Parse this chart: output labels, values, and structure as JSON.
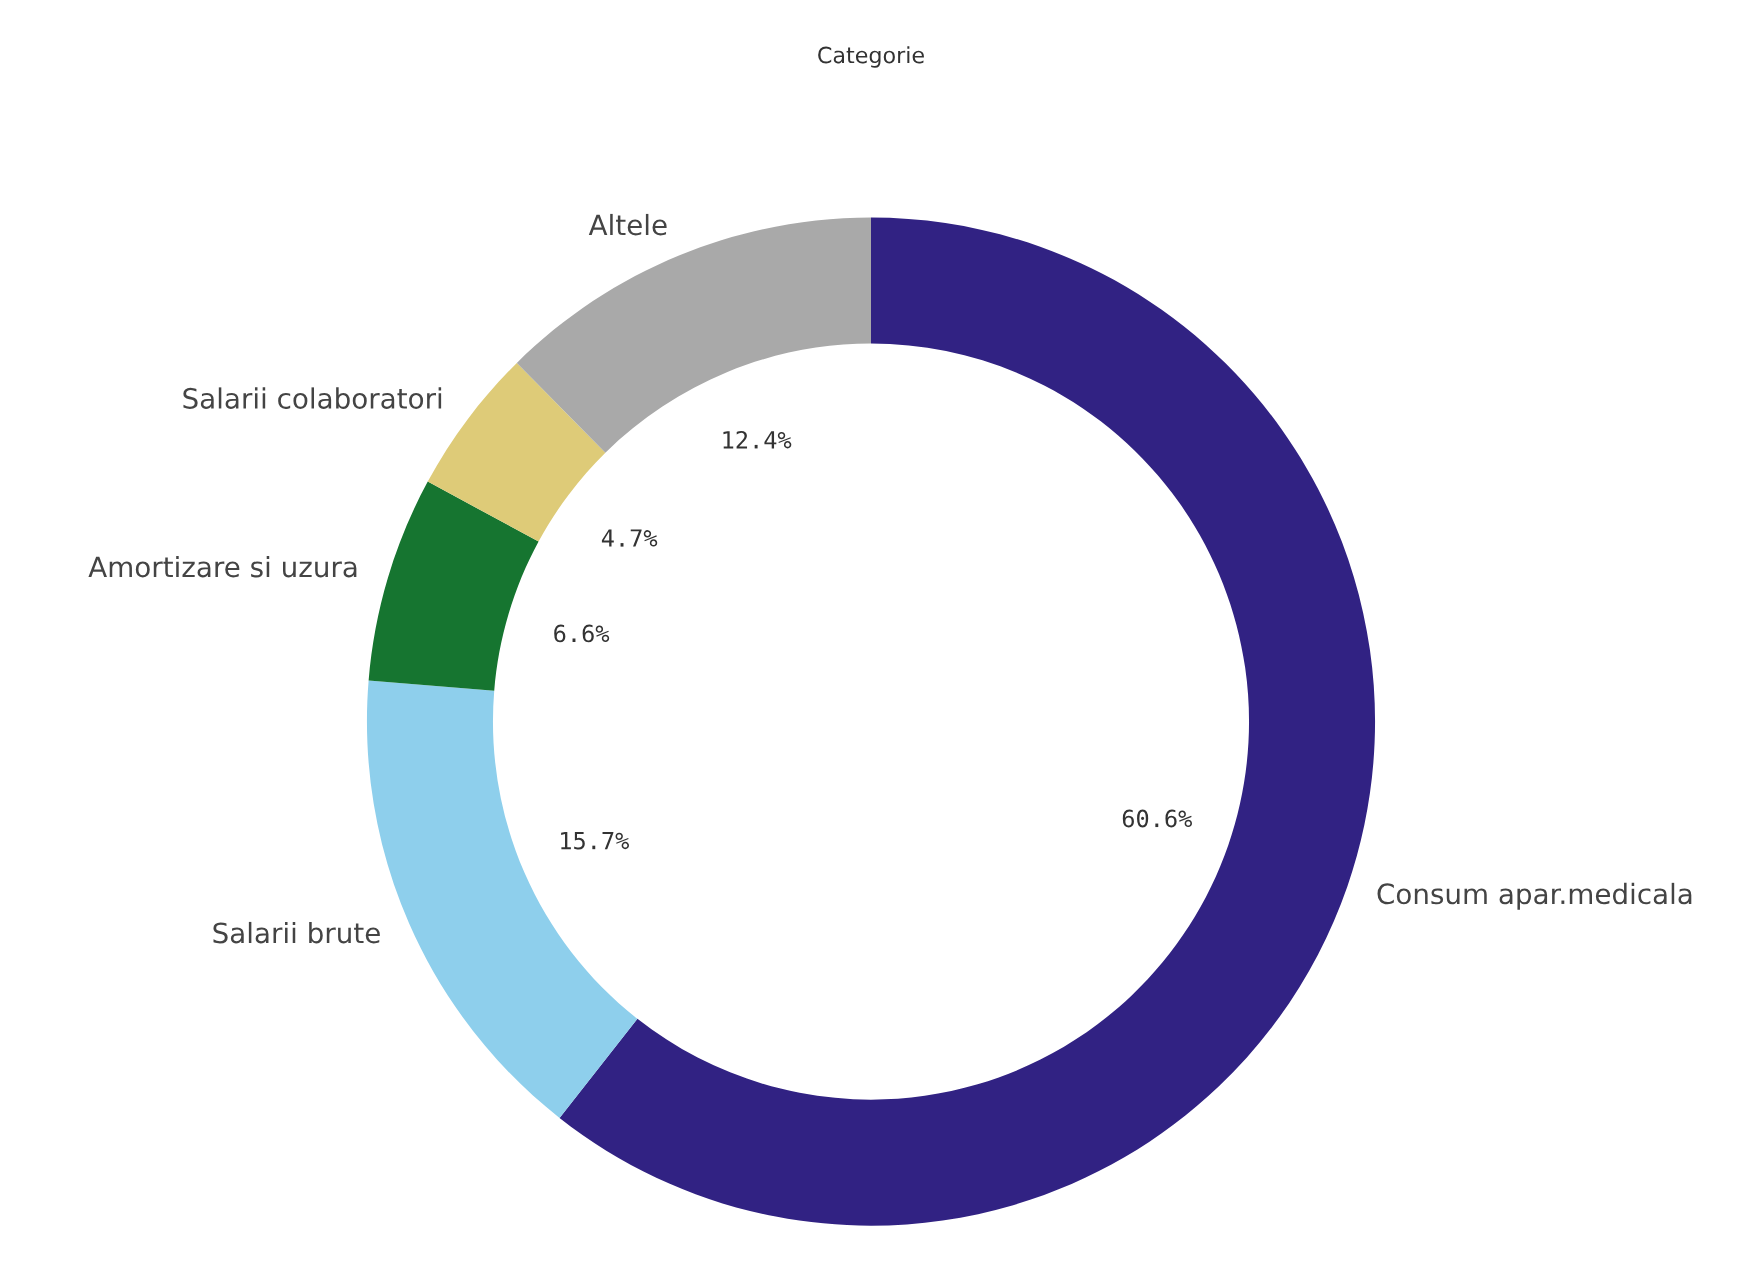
{
  "chart_data": {
    "type": "donut",
    "title": "Categorie",
    "categories": [
      "Consum apar.medicala",
      "Salarii brute",
      "Amortizare si uzura",
      "Salarii colaboratori",
      "Altele"
    ],
    "values": [
      60.6,
      15.7,
      6.6,
      4.7,
      12.4
    ],
    "value_labels": [
      "60.6%",
      "15.7%",
      "6.6%",
      "4.7%",
      "12.4%"
    ],
    "colors": [
      "#312283",
      "#8ecfec",
      "#167530",
      "#decb78",
      "#a9a9a9"
    ],
    "legend": false
  }
}
